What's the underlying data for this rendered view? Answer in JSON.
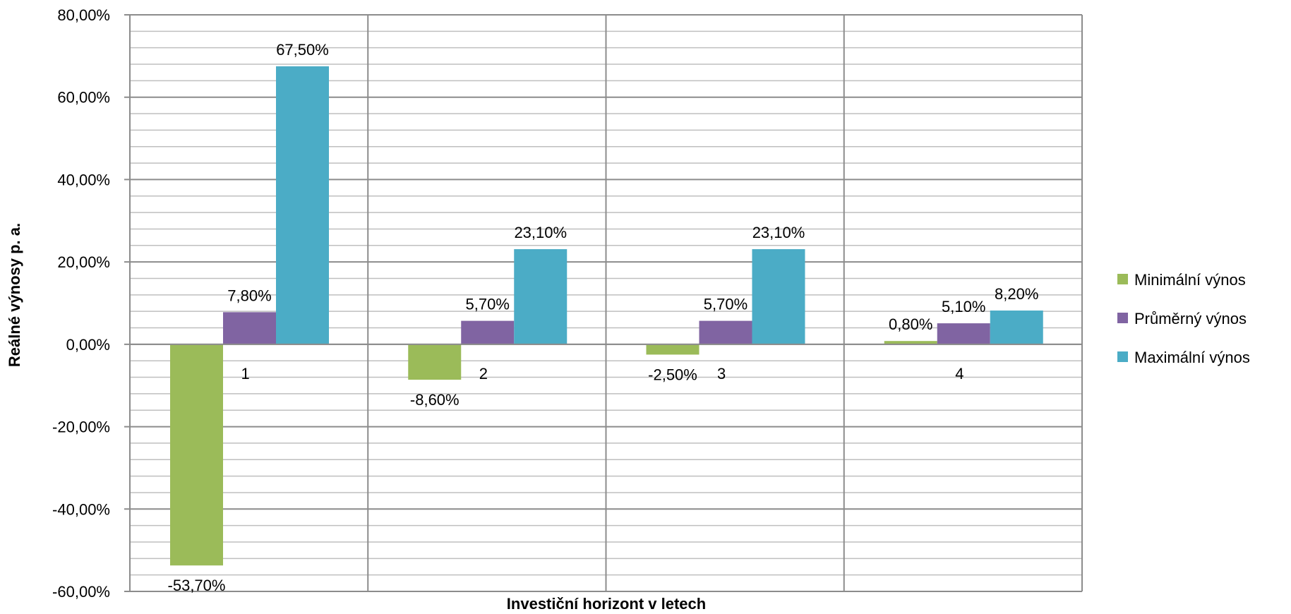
{
  "chart_data": {
    "type": "bar",
    "categories": [
      "1",
      "2",
      "3",
      "4"
    ],
    "series": [
      {
        "name": "Minimální výnos",
        "values": [
          -53.7,
          -8.6,
          -2.5,
          0.8
        ],
        "labels": [
          "-53,70%",
          "-8,60%",
          "-2,50%",
          "0,80%"
        ],
        "color": "#9bbb59"
      },
      {
        "name": "Průměrný výnos",
        "values": [
          7.8,
          5.7,
          5.7,
          5.1
        ],
        "labels": [
          "7,80%",
          "5,70%",
          "5,70%",
          "5,10%"
        ],
        "color": "#8064a2"
      },
      {
        "name": "Maximální výnos",
        "values": [
          67.5,
          23.1,
          23.1,
          8.2
        ],
        "labels": [
          "67,50%",
          "23,10%",
          "23,10%",
          "8,20%"
        ],
        "color": "#4bacc6"
      }
    ],
    "title": "",
    "xlabel": "Investiční horizont v letech",
    "ylabel": "Reálné výnosy p. a.",
    "ylim": [
      -60,
      80
    ],
    "yticks": [
      -60,
      -40,
      -20,
      0,
      20,
      40,
      60,
      80
    ],
    "ytick_labels": [
      "-60,00%",
      "-40,00%",
      "-20,00%",
      "0,00%",
      "20,00%",
      "40,00%",
      "60,00%",
      "80,00%"
    ],
    "minor_gridlines": true,
    "legend_position": "right"
  }
}
